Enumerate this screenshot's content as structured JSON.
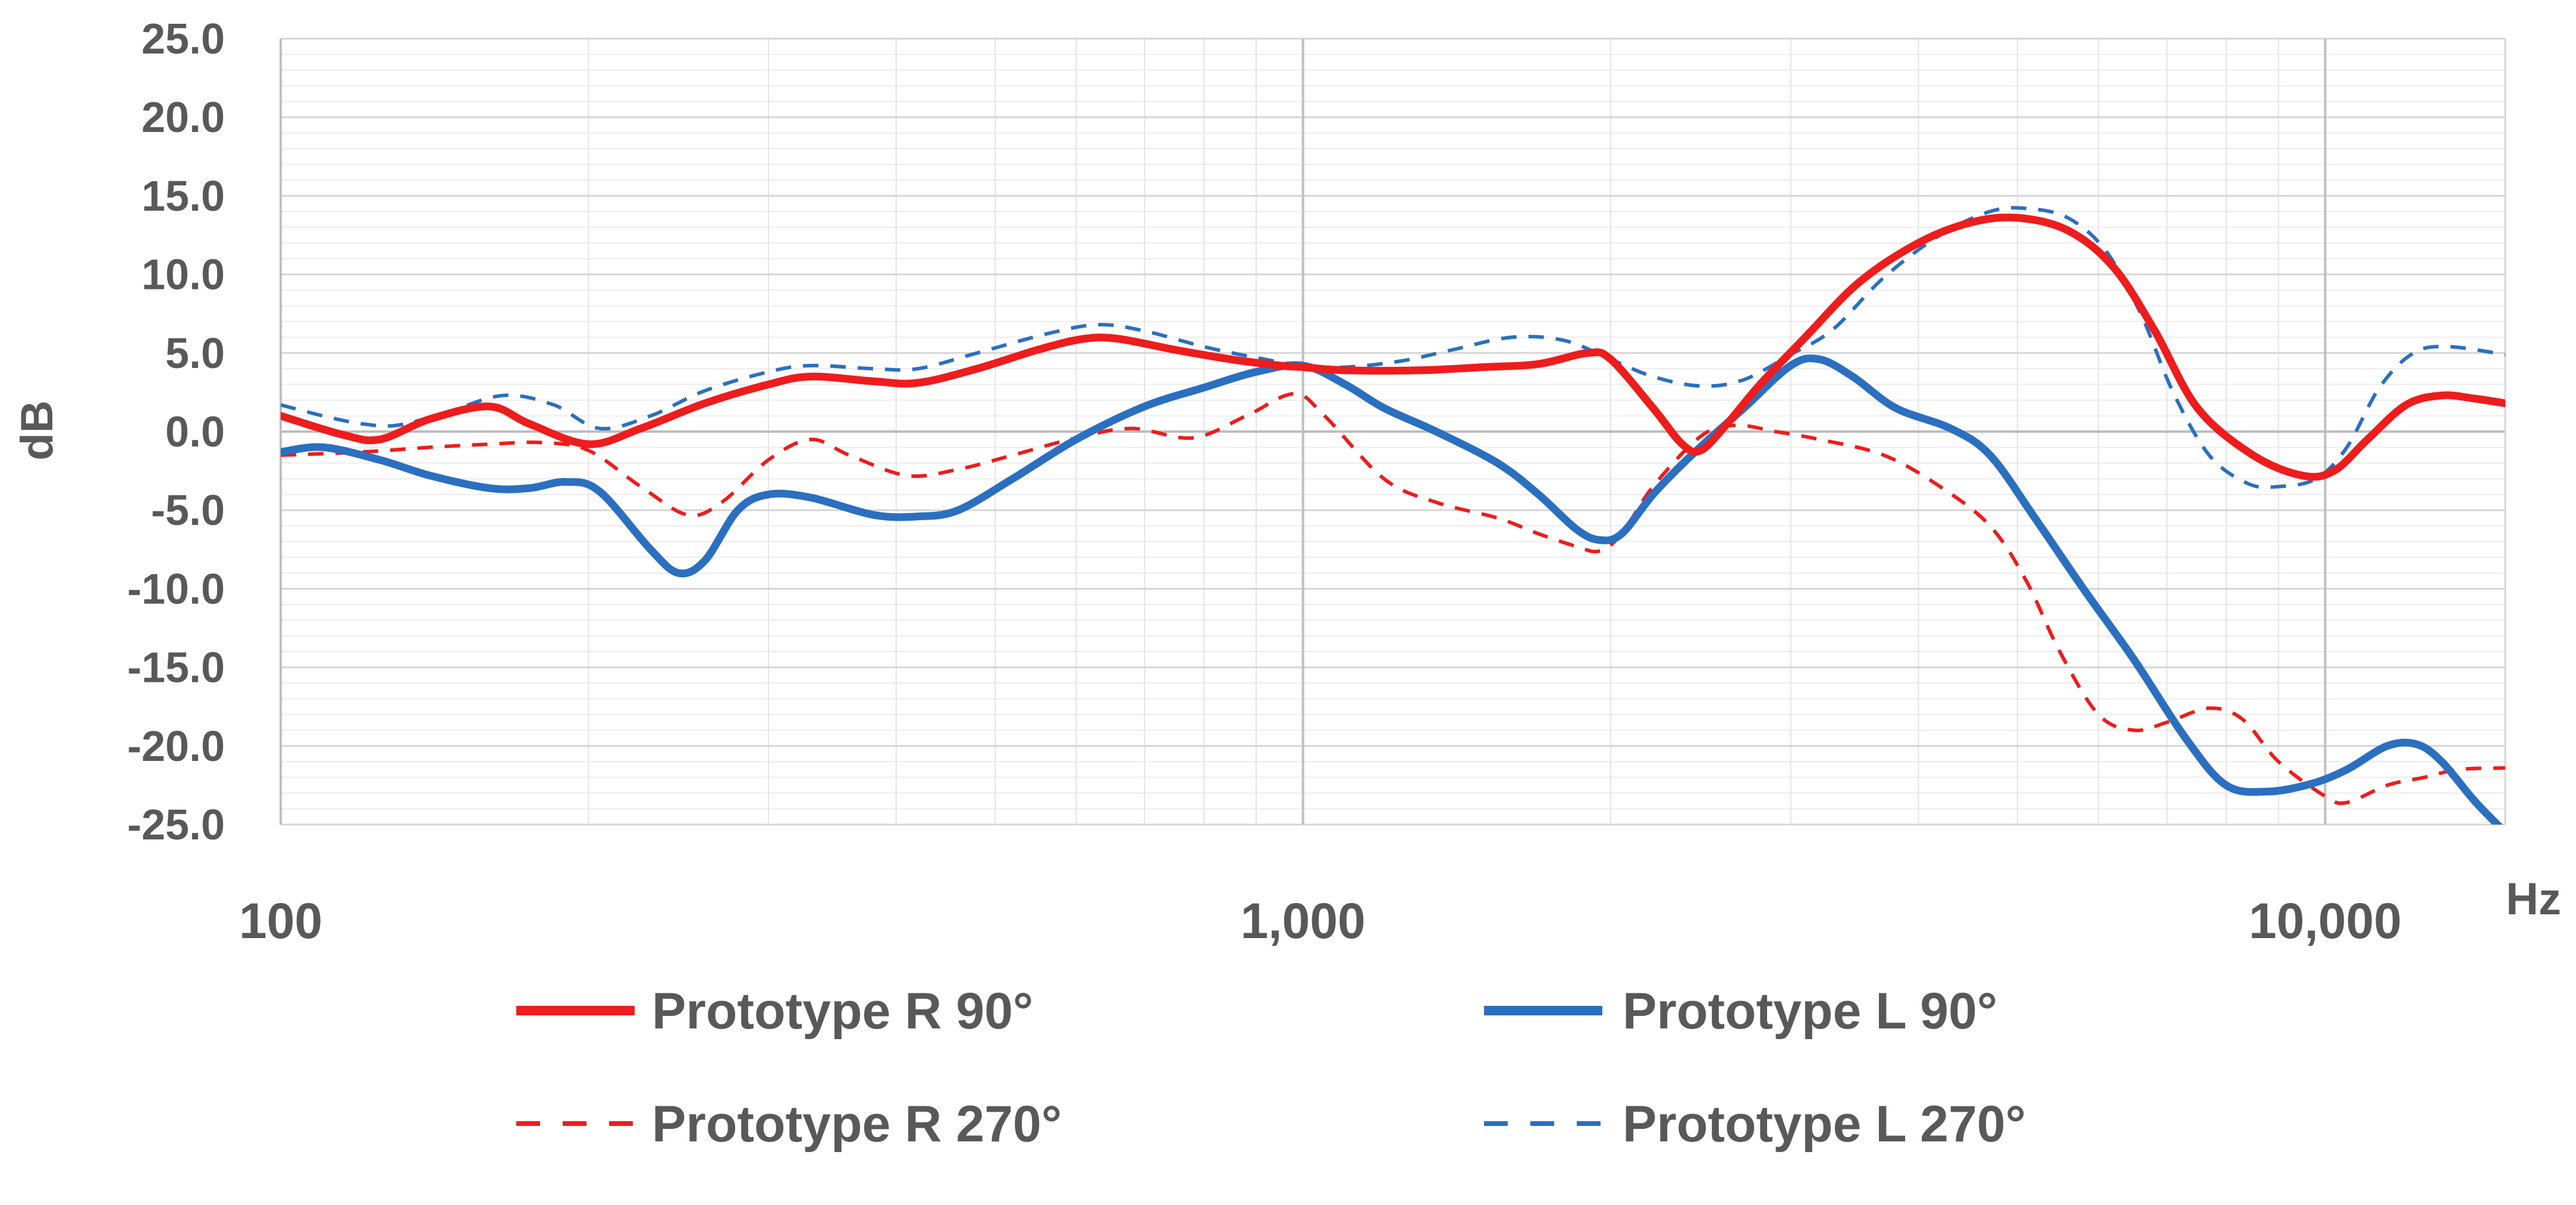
{
  "chart_data": {
    "type": "line",
    "xscale": "log",
    "xlim": [
      100,
      15000
    ],
    "ylim": [
      -25,
      25
    ],
    "yticks": [
      "25.0",
      "20.0",
      "15.0",
      "10.0",
      "5.0",
      "0.0",
      "-5.0",
      "-10.0",
      "-15.0",
      "-20.0",
      "-25.0"
    ],
    "xticks": [
      "100",
      "1,000",
      "10,000"
    ],
    "xlabel": "Hz",
    "ylabel": "dB",
    "grid": true,
    "legend_position": "bottom",
    "series": [
      {
        "name": "Prototype R 90°",
        "color": "#ee1c1c",
        "dash": "solid",
        "points": [
          [
            100,
            1.0
          ],
          [
            115,
            -0.2
          ],
          [
            125,
            -0.5
          ],
          [
            140,
            0.8
          ],
          [
            160,
            1.6
          ],
          [
            175,
            0.5
          ],
          [
            200,
            -0.8
          ],
          [
            225,
            0.2
          ],
          [
            260,
            1.8
          ],
          [
            300,
            3.0
          ],
          [
            330,
            3.5
          ],
          [
            380,
            3.2
          ],
          [
            420,
            3.1
          ],
          [
            480,
            4.0
          ],
          [
            550,
            5.2
          ],
          [
            610,
            5.9
          ],
          [
            660,
            5.9
          ],
          [
            750,
            5.2
          ],
          [
            850,
            4.6
          ],
          [
            950,
            4.2
          ],
          [
            1000,
            4.1
          ],
          [
            1100,
            3.9
          ],
          [
            1300,
            3.9
          ],
          [
            1500,
            4.1
          ],
          [
            1700,
            4.3
          ],
          [
            1900,
            5.0
          ],
          [
            2000,
            4.6
          ],
          [
            2200,
            1.5
          ],
          [
            2350,
            -0.8
          ],
          [
            2450,
            -1.2
          ],
          [
            2600,
            0.5
          ],
          [
            2800,
            3.0
          ],
          [
            3100,
            6.0
          ],
          [
            3500,
            9.5
          ],
          [
            4000,
            12.0
          ],
          [
            4500,
            13.3
          ],
          [
            5000,
            13.6
          ],
          [
            5600,
            12.8
          ],
          [
            6200,
            10.5
          ],
          [
            6800,
            6.5
          ],
          [
            7500,
            1.5
          ],
          [
            8500,
            -1.5
          ],
          [
            9500,
            -2.8
          ],
          [
            10200,
            -2.5
          ],
          [
            11000,
            -0.5
          ],
          [
            12000,
            1.7
          ],
          [
            13000,
            2.3
          ],
          [
            14000,
            2.1
          ],
          [
            15000,
            1.8
          ]
        ]
      },
      {
        "name": "Prototype L 90°",
        "color": "#2b6fc0",
        "dash": "solid",
        "points": [
          [
            100,
            -1.3
          ],
          [
            110,
            -1.0
          ],
          [
            125,
            -1.8
          ],
          [
            140,
            -2.8
          ],
          [
            160,
            -3.6
          ],
          [
            175,
            -3.6
          ],
          [
            190,
            -3.2
          ],
          [
            205,
            -3.8
          ],
          [
            230,
            -7.5
          ],
          [
            245,
            -9.0
          ],
          [
            260,
            -8.2
          ],
          [
            280,
            -5.0
          ],
          [
            300,
            -4.0
          ],
          [
            330,
            -4.2
          ],
          [
            380,
            -5.3
          ],
          [
            420,
            -5.4
          ],
          [
            460,
            -5.0
          ],
          [
            520,
            -3.0
          ],
          [
            600,
            -0.5
          ],
          [
            700,
            1.6
          ],
          [
            800,
            2.8
          ],
          [
            900,
            3.8
          ],
          [
            1000,
            4.2
          ],
          [
            1100,
            3.0
          ],
          [
            1200,
            1.5
          ],
          [
            1350,
            0.0
          ],
          [
            1550,
            -2.0
          ],
          [
            1700,
            -4.0
          ],
          [
            1850,
            -6.2
          ],
          [
            1950,
            -6.9
          ],
          [
            2050,
            -6.5
          ],
          [
            2200,
            -4.0
          ],
          [
            2400,
            -1.5
          ],
          [
            2700,
            1.5
          ],
          [
            3000,
            4.2
          ],
          [
            3200,
            4.6
          ],
          [
            3450,
            3.5
          ],
          [
            3800,
            1.5
          ],
          [
            4300,
            0.2
          ],
          [
            4700,
            -1.5
          ],
          [
            5200,
            -5.5
          ],
          [
            5800,
            -10.0
          ],
          [
            6500,
            -14.5
          ],
          [
            7300,
            -19.5
          ],
          [
            8000,
            -22.5
          ],
          [
            8800,
            -22.9
          ],
          [
            9700,
            -22.4
          ],
          [
            10500,
            -21.5
          ],
          [
            11500,
            -20.0
          ],
          [
            12300,
            -19.9
          ],
          [
            13000,
            -21.0
          ],
          [
            14000,
            -23.5
          ],
          [
            15000,
            -25.5
          ]
        ]
      },
      {
        "name": "Prototype R 270°",
        "color": "#ee1c1c",
        "dash": "dashed",
        "points": [
          [
            100,
            -1.5
          ],
          [
            120,
            -1.3
          ],
          [
            140,
            -1.0
          ],
          [
            160,
            -0.8
          ],
          [
            180,
            -0.7
          ],
          [
            200,
            -1.2
          ],
          [
            225,
            -3.5
          ],
          [
            250,
            -5.3
          ],
          [
            270,
            -4.5
          ],
          [
            300,
            -1.8
          ],
          [
            330,
            -0.5
          ],
          [
            360,
            -1.5
          ],
          [
            410,
            -2.8
          ],
          [
            460,
            -2.4
          ],
          [
            520,
            -1.5
          ],
          [
            600,
            -0.4
          ],
          [
            680,
            0.2
          ],
          [
            780,
            -0.4
          ],
          [
            880,
            1.0
          ],
          [
            980,
            2.4
          ],
          [
            1050,
            1.0
          ],
          [
            1200,
            -3.0
          ],
          [
            1350,
            -4.5
          ],
          [
            1550,
            -5.5
          ],
          [
            1700,
            -6.5
          ],
          [
            1850,
            -7.3
          ],
          [
            1950,
            -7.6
          ],
          [
            2050,
            -6.5
          ],
          [
            2200,
            -3.5
          ],
          [
            2450,
            -0.3
          ],
          [
            2650,
            0.4
          ],
          [
            2900,
            0.0
          ],
          [
            3200,
            -0.5
          ],
          [
            3700,
            -1.5
          ],
          [
            4200,
            -3.5
          ],
          [
            4700,
            -6.0
          ],
          [
            5100,
            -9.5
          ],
          [
            5500,
            -14.0
          ],
          [
            6000,
            -18.0
          ],
          [
            6500,
            -19.0
          ],
          [
            7000,
            -18.5
          ],
          [
            7700,
            -17.6
          ],
          [
            8300,
            -18.3
          ],
          [
            9000,
            -21.0
          ],
          [
            10000,
            -23.2
          ],
          [
            10500,
            -23.6
          ],
          [
            11500,
            -22.5
          ],
          [
            12500,
            -22.0
          ],
          [
            13500,
            -21.5
          ],
          [
            15000,
            -21.4
          ]
        ]
      },
      {
        "name": "Prototype L 270°",
        "color": "#2b6fc0",
        "dash": "dashed",
        "points": [
          [
            100,
            1.7
          ],
          [
            110,
            1.0
          ],
          [
            120,
            0.5
          ],
          [
            130,
            0.4
          ],
          [
            145,
            1.2
          ],
          [
            165,
            2.3
          ],
          [
            185,
            1.7
          ],
          [
            205,
            0.2
          ],
          [
            230,
            1.0
          ],
          [
            260,
            2.6
          ],
          [
            300,
            3.8
          ],
          [
            330,
            4.2
          ],
          [
            380,
            4.0
          ],
          [
            420,
            4.0
          ],
          [
            480,
            5.0
          ],
          [
            560,
            6.2
          ],
          [
            630,
            6.8
          ],
          [
            700,
            6.4
          ],
          [
            800,
            5.4
          ],
          [
            900,
            4.7
          ],
          [
            1000,
            4.2
          ],
          [
            1100,
            4.1
          ],
          [
            1250,
            4.5
          ],
          [
            1400,
            5.2
          ],
          [
            1600,
            6.0
          ],
          [
            1800,
            5.8
          ],
          [
            2000,
            4.6
          ],
          [
            2200,
            3.5
          ],
          [
            2450,
            2.9
          ],
          [
            2700,
            3.3
          ],
          [
            3000,
            4.9
          ],
          [
            3300,
            6.5
          ],
          [
            3700,
            9.8
          ],
          [
            4200,
            12.5
          ],
          [
            4700,
            14.0
          ],
          [
            5100,
            14.2
          ],
          [
            5600,
            13.6
          ],
          [
            6100,
            11.5
          ],
          [
            6600,
            7.5
          ],
          [
            7100,
            2.5
          ],
          [
            7700,
            -1.5
          ],
          [
            8400,
            -3.3
          ],
          [
            9000,
            -3.5
          ],
          [
            9800,
            -3.0
          ],
          [
            10500,
            -1.0
          ],
          [
            11300,
            2.8
          ],
          [
            12200,
            5.0
          ],
          [
            13200,
            5.4
          ],
          [
            15000,
            4.9
          ]
        ]
      }
    ]
  }
}
